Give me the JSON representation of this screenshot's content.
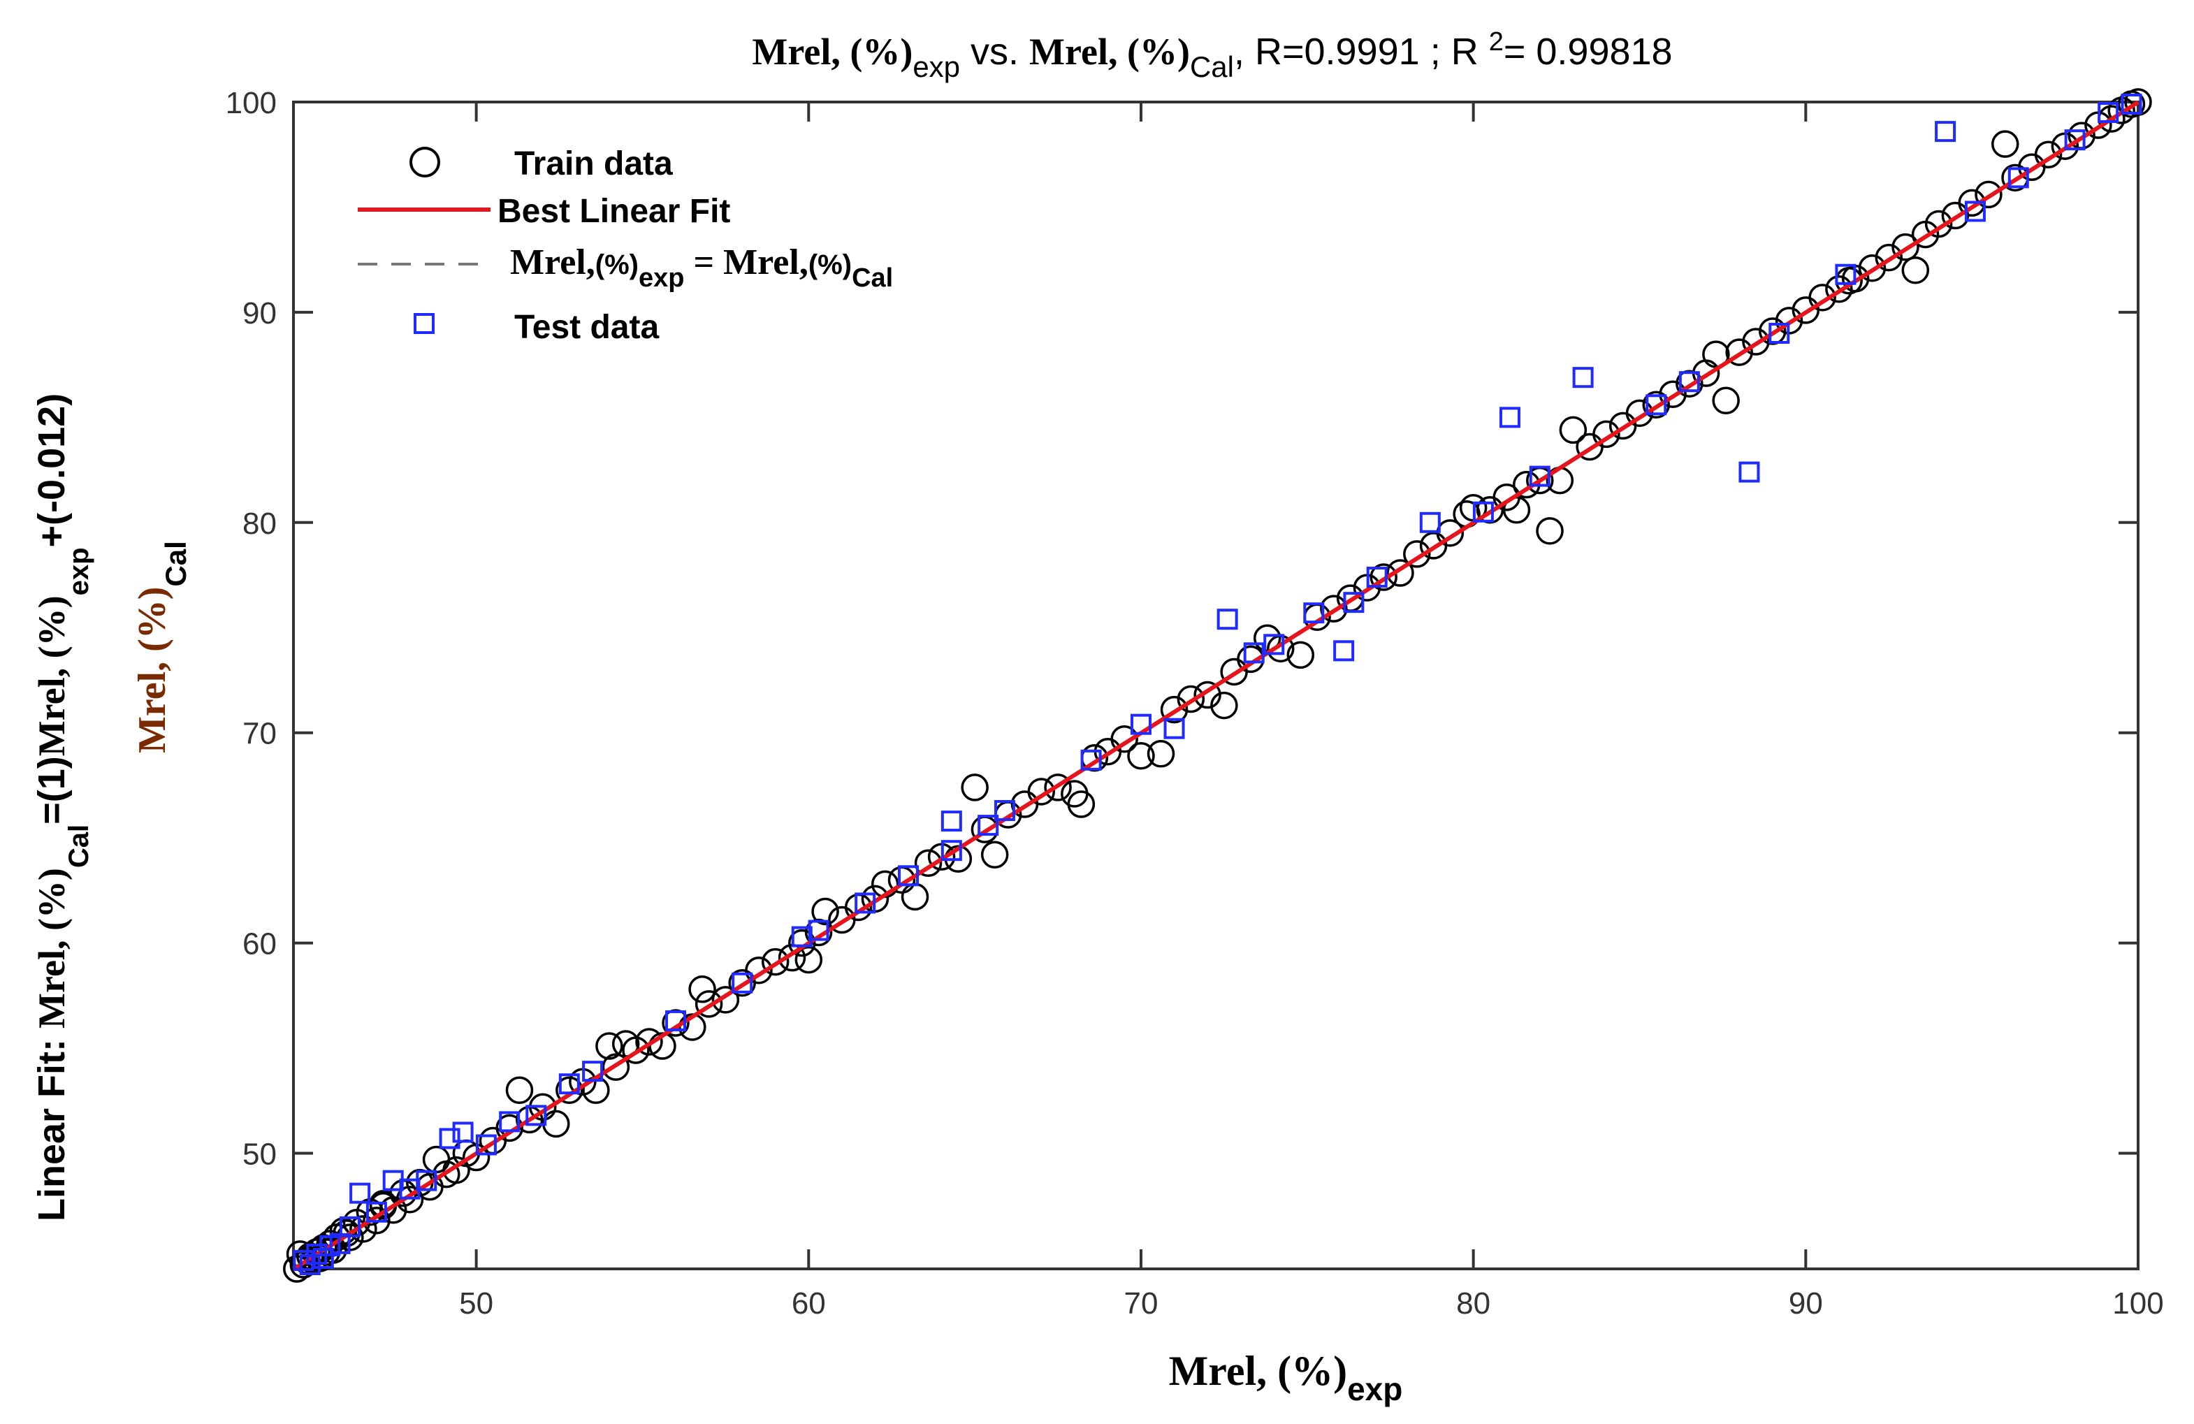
{
  "chart_data": {
    "type": "scatter",
    "title": {
      "left_main": "Mrel, (%)",
      "left_sub": "exp",
      "vs": " vs. ",
      "right_main": "Mrel, (%)",
      "right_sub": "Cal",
      "stats_r": ", R=0.9991 ; R ",
      "stats_sup": "2",
      "stats_r2": "= 0.99818"
    },
    "xlabel": {
      "main": "Mrel, (%)",
      "sub": "exp"
    },
    "ylabel": {
      "line1_prefix": "Linear Fit:  ",
      "line1_var": "Mrel, (%)",
      "line1_sub": "Cal",
      "line1_mid": "=(1)",
      "line1_var2": "Mrel, (%)",
      "line1_sub2": "exp",
      "line1_end": "+(-0.012)",
      "line2_var": "Mrel, (%)",
      "line2_sub": "Cal"
    },
    "xlim": [
      44.5,
      100
    ],
    "ylim": [
      44.5,
      100
    ],
    "xticks": [
      50,
      60,
      70,
      80,
      90,
      100
    ],
    "yticks": [
      50,
      60,
      70,
      80,
      90,
      100
    ],
    "grid": false,
    "legend": {
      "placement": "top-left",
      "train_label": "Train data",
      "fit_label": "Best Linear Fit",
      "ideal_main": "Mrel,",
      "ideal_pct": "(%)",
      "ideal_sub1": "exp",
      "ideal_eq": " = Mrel,",
      "ideal_sub2": "Cal",
      "test_label": "Test data"
    },
    "fit": {
      "slope": 1,
      "intercept": -0.012,
      "color": "#e8141c"
    },
    "ideal_color": "#777777",
    "train_color": "#000000",
    "test_color": "#1f2bff",
    "series": [
      {
        "name": "Train data",
        "marker": "circle",
        "points": [
          [
            44.6,
            44.5
          ],
          [
            44.7,
            45.2
          ],
          [
            44.8,
            44.7
          ],
          [
            44.9,
            44.9
          ],
          [
            45.0,
            45.1
          ],
          [
            45.1,
            44.9
          ],
          [
            45.2,
            45.3
          ],
          [
            45.3,
            45.0
          ],
          [
            45.4,
            45.5
          ],
          [
            45.5,
            45.3
          ],
          [
            45.6,
            45.7
          ],
          [
            45.8,
            46.0
          ],
          [
            46.0,
            46.3
          ],
          [
            46.2,
            46.0
          ],
          [
            46.4,
            46.7
          ],
          [
            46.6,
            46.4
          ],
          [
            46.8,
            47.2
          ],
          [
            47.0,
            46.8
          ],
          [
            47.2,
            47.5
          ],
          [
            47.5,
            47.3
          ],
          [
            47.8,
            48.1
          ],
          [
            48.0,
            47.8
          ],
          [
            48.3,
            48.6
          ],
          [
            48.6,
            48.4
          ],
          [
            48.8,
            49.7
          ],
          [
            49.1,
            49.0
          ],
          [
            49.4,
            49.2
          ],
          [
            49.7,
            50.0
          ],
          [
            50.0,
            49.8
          ],
          [
            50.5,
            50.6
          ],
          [
            51.0,
            51.2
          ],
          [
            51.3,
            53.0
          ],
          [
            51.6,
            51.6
          ],
          [
            52.0,
            52.2
          ],
          [
            52.4,
            51.4
          ],
          [
            52.8,
            53.0
          ],
          [
            53.2,
            53.4
          ],
          [
            53.6,
            53.0
          ],
          [
            54.0,
            55.1
          ],
          [
            54.2,
            54.1
          ],
          [
            54.5,
            55.2
          ],
          [
            54.8,
            54.9
          ],
          [
            55.2,
            55.3
          ],
          [
            55.6,
            55.1
          ],
          [
            56.0,
            56.2
          ],
          [
            56.5,
            56.0
          ],
          [
            56.8,
            57.8
          ],
          [
            57.0,
            57.1
          ],
          [
            57.5,
            57.3
          ],
          [
            58.0,
            58.1
          ],
          [
            58.5,
            58.7
          ],
          [
            59.0,
            59.1
          ],
          [
            59.5,
            59.3
          ],
          [
            60.0,
            59.2
          ],
          [
            60.3,
            60.5
          ],
          [
            60.5,
            61.5
          ],
          [
            61.0,
            61.1
          ],
          [
            61.5,
            61.7
          ],
          [
            62.0,
            62.1
          ],
          [
            62.3,
            62.8
          ],
          [
            62.8,
            63.0
          ],
          [
            63.2,
            62.2
          ],
          [
            63.6,
            63.8
          ],
          [
            64.0,
            64.1
          ],
          [
            64.5,
            64.0
          ],
          [
            65.0,
            67.4
          ],
          [
            65.3,
            65.4
          ],
          [
            65.6,
            64.2
          ],
          [
            66.0,
            66.1
          ],
          [
            66.5,
            66.6
          ],
          [
            67.0,
            67.2
          ],
          [
            67.5,
            67.4
          ],
          [
            68.0,
            67.1
          ],
          [
            68.2,
            66.6
          ],
          [
            68.6,
            68.8
          ],
          [
            69.0,
            69.1
          ],
          [
            69.5,
            69.7
          ],
          [
            70.0,
            68.9
          ],
          [
            70.6,
            69.0
          ],
          [
            71.0,
            71.1
          ],
          [
            71.5,
            71.6
          ],
          [
            72.0,
            71.8
          ],
          [
            72.5,
            71.3
          ],
          [
            72.8,
            72.9
          ],
          [
            73.3,
            73.5
          ],
          [
            73.8,
            74.5
          ],
          [
            74.2,
            74.0
          ],
          [
            74.8,
            73.7
          ],
          [
            75.3,
            75.5
          ],
          [
            75.8,
            75.9
          ],
          [
            76.3,
            76.4
          ],
          [
            76.8,
            76.9
          ],
          [
            77.3,
            77.4
          ],
          [
            77.8,
            77.6
          ],
          [
            78.3,
            78.5
          ],
          [
            78.8,
            78.9
          ],
          [
            79.3,
            79.5
          ],
          [
            79.8,
            80.4
          ],
          [
            80.0,
            80.7
          ],
          [
            80.5,
            80.6
          ],
          [
            81.0,
            81.2
          ],
          [
            81.3,
            80.6
          ],
          [
            81.6,
            81.8
          ],
          [
            82.0,
            82.0
          ],
          [
            82.3,
            79.6
          ],
          [
            82.6,
            82.0
          ],
          [
            83.0,
            84.4
          ],
          [
            83.5,
            83.6
          ],
          [
            84.0,
            84.2
          ],
          [
            84.5,
            84.6
          ],
          [
            85.0,
            85.2
          ],
          [
            85.5,
            85.6
          ],
          [
            86.0,
            86.1
          ],
          [
            86.5,
            86.6
          ],
          [
            87.0,
            87.1
          ],
          [
            87.3,
            88.0
          ],
          [
            87.6,
            85.8
          ],
          [
            88.0,
            88.1
          ],
          [
            88.5,
            88.6
          ],
          [
            89.0,
            89.1
          ],
          [
            89.5,
            89.6
          ],
          [
            90.0,
            90.1
          ],
          [
            90.5,
            90.7
          ],
          [
            91.0,
            91.1
          ],
          [
            91.5,
            91.6
          ],
          [
            92.0,
            92.1
          ],
          [
            92.5,
            92.6
          ],
          [
            93.0,
            93.1
          ],
          [
            93.3,
            92.0
          ],
          [
            93.6,
            93.7
          ],
          [
            94.0,
            94.2
          ],
          [
            94.5,
            94.6
          ],
          [
            95.0,
            95.2
          ],
          [
            95.5,
            95.6
          ],
          [
            96.0,
            98.0
          ],
          [
            96.3,
            96.4
          ],
          [
            96.8,
            96.9
          ],
          [
            97.3,
            97.5
          ],
          [
            97.8,
            97.9
          ],
          [
            98.3,
            98.4
          ],
          [
            98.8,
            98.9
          ],
          [
            99.2,
            99.2
          ],
          [
            99.5,
            99.6
          ],
          [
            99.8,
            99.9
          ],
          [
            100.0,
            100.0
          ],
          [
            91.3,
            91.5
          ],
          [
            59.8,
            60.0
          ],
          [
            47.2,
            47.6
          ],
          [
            46.1,
            46.2
          ],
          [
            45.7,
            45.4
          ]
        ]
      },
      {
        "name": "Test data",
        "marker": "square",
        "points": [
          [
            44.8,
            44.9
          ],
          [
            45.0,
            44.7
          ],
          [
            45.2,
            45.2
          ],
          [
            45.4,
            45.0
          ],
          [
            45.6,
            45.6
          ],
          [
            45.9,
            45.7
          ],
          [
            46.2,
            46.5
          ],
          [
            46.5,
            48.1
          ],
          [
            47.0,
            47.2
          ],
          [
            47.5,
            48.7
          ],
          [
            48.0,
            48.3
          ],
          [
            48.5,
            48.7
          ],
          [
            49.2,
            50.7
          ],
          [
            49.6,
            51.0
          ],
          [
            50.3,
            50.4
          ],
          [
            51.0,
            51.5
          ],
          [
            51.8,
            51.8
          ],
          [
            52.8,
            53.3
          ],
          [
            53.5,
            53.9
          ],
          [
            56.0,
            56.3
          ],
          [
            58.0,
            58.1
          ],
          [
            59.8,
            60.3
          ],
          [
            60.3,
            60.6
          ],
          [
            61.7,
            61.9
          ],
          [
            63.0,
            63.2
          ],
          [
            64.3,
            64.4
          ],
          [
            64.3,
            65.8
          ],
          [
            65.4,
            65.6
          ],
          [
            65.9,
            66.3
          ],
          [
            68.5,
            68.7
          ],
          [
            70.0,
            70.4
          ],
          [
            71.0,
            70.2
          ],
          [
            72.6,
            75.4
          ],
          [
            73.4,
            73.8
          ],
          [
            74.0,
            74.2
          ],
          [
            75.2,
            75.7
          ],
          [
            76.1,
            73.9
          ],
          [
            76.4,
            76.2
          ],
          [
            77.1,
            77.4
          ],
          [
            78.7,
            80.0
          ],
          [
            80.3,
            80.5
          ],
          [
            81.1,
            85.0
          ],
          [
            82.0,
            82.2
          ],
          [
            83.3,
            86.9
          ],
          [
            85.5,
            85.6
          ],
          [
            86.5,
            86.7
          ],
          [
            88.3,
            82.4
          ],
          [
            89.2,
            89.0
          ],
          [
            91.2,
            91.8
          ],
          [
            94.2,
            98.6
          ],
          [
            95.1,
            94.8
          ],
          [
            96.4,
            96.4
          ],
          [
            98.1,
            98.2
          ],
          [
            99.1,
            99.5
          ],
          [
            99.8,
            99.9
          ]
        ]
      }
    ]
  }
}
